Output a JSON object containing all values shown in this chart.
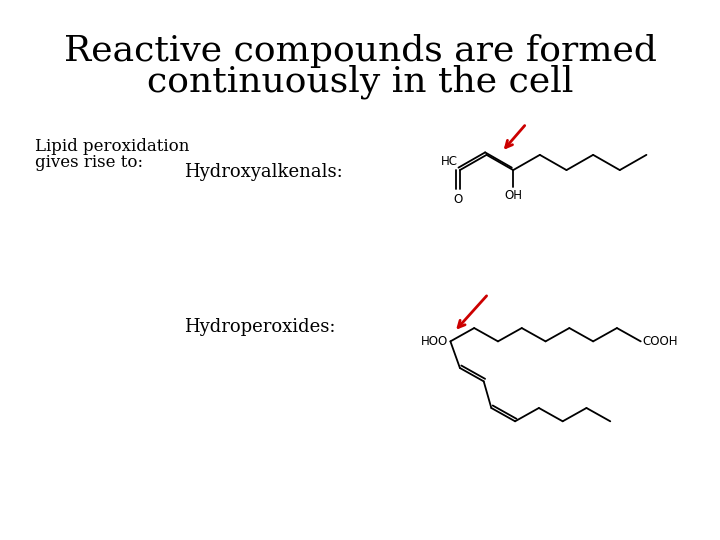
{
  "bg_color": "#ffffff",
  "title_line1": "Reactive compounds are formed",
  "title_line2": "continuously in the cell",
  "title_fontsize": 26,
  "title_font": "serif",
  "body_fontsize": 12,
  "body_font": "serif",
  "label_fontsize": 13,
  "label_font": "serif",
  "text_color": "#000000",
  "red_arrow_color": "#cc0000",
  "lipid_text": "Lipid peroxidation\ngives rise to:",
  "label1": "Hydroxyalkenals:",
  "label2": "Hydroperoxides:"
}
